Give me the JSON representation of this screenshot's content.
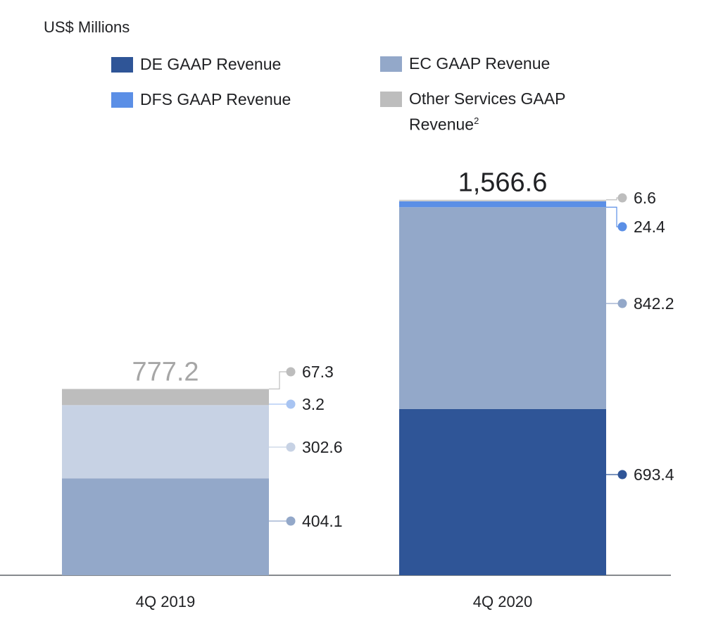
{
  "unit_label": "US$ Millions",
  "legend": [
    {
      "key": "de",
      "label": "DE GAAP Revenue",
      "color": "#2f5597"
    },
    {
      "key": "ec",
      "label": "EC GAAP Revenue",
      "color": "#93a8c9"
    },
    {
      "key": "dfs",
      "label": "DFS GAAP Revenue",
      "color": "#5b8fe6"
    },
    {
      "key": "os",
      "label": "Other Services GAAP Revenue",
      "sup": "2",
      "color": "#bdbdbd"
    }
  ],
  "chart_data": {
    "type": "bar",
    "stacked": true,
    "categories": [
      "4Q 2019",
      "4Q 2020"
    ],
    "totals": [
      "777.2",
      "1,566.6"
    ],
    "series": [
      {
        "key": "de",
        "name": "DE GAAP Revenue",
        "values": [
          null,
          693.4
        ],
        "labels": [
          "",
          "693.4"
        ]
      },
      {
        "key": "ec",
        "name": "EC GAAP Revenue",
        "values": [
          404.1,
          842.2
        ],
        "labels": [
          "404.1",
          "842.2"
        ]
      },
      {
        "key": "dfs",
        "name": "DFS GAAP Revenue",
        "values": [
          302.6,
          24.4
        ],
        "labels": [
          "302.6",
          "24.4"
        ]
      },
      {
        "key": "os_small",
        "values": [
          3.2,
          null
        ],
        "labels": [
          "3.2",
          ""
        ]
      },
      {
        "key": "os",
        "name": "Other Services GAAP Revenue",
        "values": [
          67.3,
          6.6
        ],
        "labels": [
          "67.3",
          "6.6"
        ]
      }
    ],
    "bar_colors": [
      [
        "#93a8c9",
        "#c7d2e4",
        "#c7d2e4",
        "#bdbdbd"
      ],
      [
        "#2f5597",
        "#93a8c9",
        "#5b8fe6",
        "#cccccc"
      ]
    ],
    "dot_colors": [
      [
        "#93a8c9",
        "#c7d2e4",
        "#a8c4f2",
        "#bdbdbd"
      ],
      [
        "#2f5597",
        "#93a8c9",
        "#5b8fe6",
        "#bdbdbd"
      ]
    ],
    "total_colors": [
      "#a6a6a6",
      "#202124"
    ]
  }
}
